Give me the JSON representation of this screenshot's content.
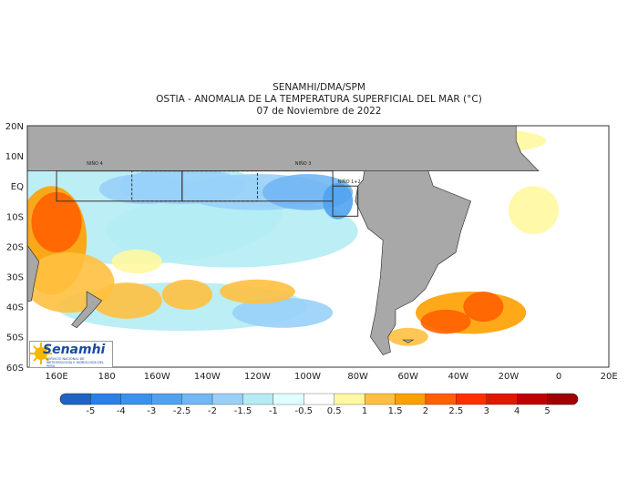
{
  "header": {
    "agency": "SENAMHI/DMA/SPM",
    "title": "OSTIA - ANOMALIA DE LA TEMPERATURA SUPERFICIAL DEL MAR (°C)",
    "date": "07 de Noviembre de 2022"
  },
  "map": {
    "lon_labels": [
      "160E",
      "180",
      "160W",
      "140W",
      "120W",
      "100W",
      "80W",
      "60W",
      "40W",
      "20W",
      "0",
      "20E"
    ],
    "lat_labels": [
      "20N",
      "10N",
      "EQ",
      "10S",
      "20S",
      "30S",
      "40S",
      "50S",
      "60S"
    ],
    "regions": [
      {
        "label": "NIÑO 4"
      },
      {
        "label": "NIÑO 3"
      },
      {
        "label": "NIÑO 1+2"
      }
    ],
    "land_color": "#a8a8a8"
  },
  "logo": {
    "name": "Senamhi",
    "subtitle": "SERVICIO NACIONAL DE METEOROLOGÍA E HIDROLOGÍA DEL PERÚ"
  },
  "colorbar": {
    "labels": [
      "-5",
      "-4",
      "-3",
      "-2.5",
      "-2",
      "-1.5",
      "-1",
      "-0.5",
      "0.5",
      "1",
      "1.5",
      "2",
      "2.5",
      "3",
      "4",
      "5"
    ],
    "colors": [
      "#1e64c8",
      "#2a80e8",
      "#3a92ee",
      "#50a2f0",
      "#72b6f4",
      "#98d0f8",
      "#b4ecf4",
      "#e0ffff",
      "#ffffff",
      "#fff8a0",
      "#ffc040",
      "#ffa000",
      "#ff6000",
      "#ff3000",
      "#e01800",
      "#c00000",
      "#a00000"
    ]
  }
}
